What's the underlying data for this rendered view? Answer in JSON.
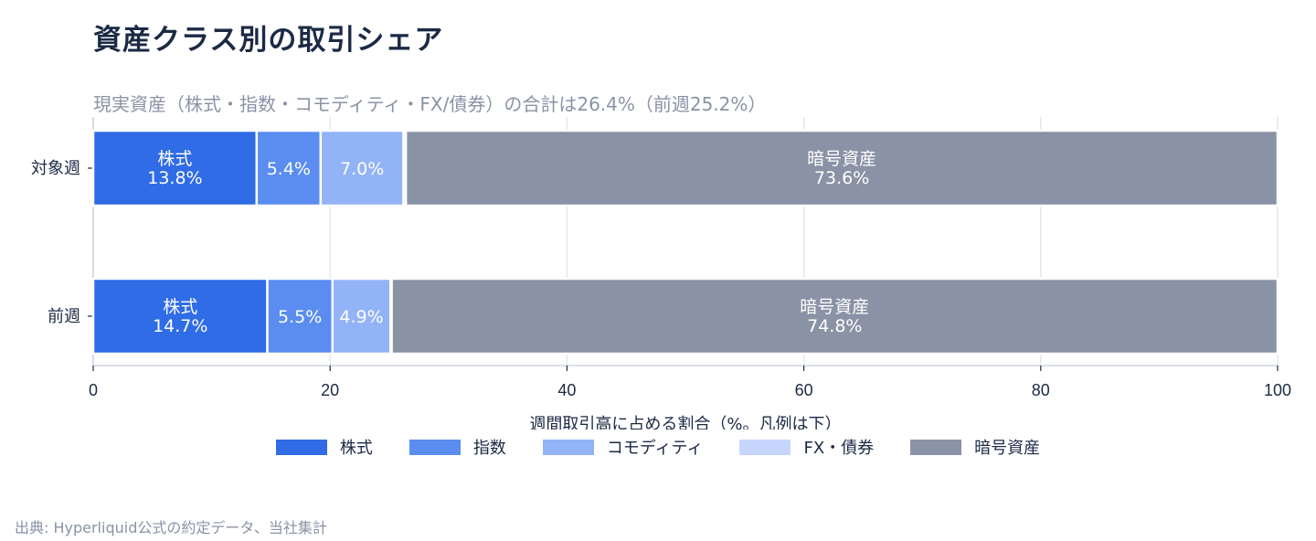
{
  "title": "資産クラス別の取引シェア",
  "subtitle": "現実資産（株式・指数・コモディティ・FX/債券）の合計は26.4%（前週25.2%）",
  "source": "出典: Hyperliquid公式の約定データ、当社集計",
  "chart_data": {
    "type": "bar",
    "orientation": "horizontal",
    "stacked": true,
    "categories": [
      "対象週",
      "前週"
    ],
    "series": [
      {
        "name": "株式",
        "color": "#2f6ce5",
        "values": [
          13.8,
          14.7
        ],
        "labels": [
          "株式\n13.8%",
          "株式\n14.7%"
        ]
      },
      {
        "name": "指数",
        "color": "#5a8def",
        "values": [
          5.4,
          5.5
        ],
        "labels": [
          "5.4%",
          "5.5%"
        ]
      },
      {
        "name": "コモディティ",
        "color": "#93b3f7",
        "values": [
          7.0,
          4.9
        ],
        "labels": [
          "7.0%",
          "4.9%"
        ]
      },
      {
        "name": "FX・債券",
        "color": "#c5d5fb",
        "values": [
          0.2,
          0.1
        ],
        "labels": [
          "",
          ""
        ]
      },
      {
        "name": "暗号資産",
        "color": "#8a92a5",
        "values": [
          73.6,
          74.8
        ],
        "labels": [
          "暗号資産\n73.6%",
          "暗号資産\n74.8%"
        ]
      }
    ],
    "xlabel": "週間取引高に占める割合（%。凡例は下）",
    "xlim": [
      0,
      100
    ],
    "xticks": [
      0,
      20,
      40,
      60,
      80,
      100
    ],
    "grid": true,
    "legend_position": "bottom"
  }
}
